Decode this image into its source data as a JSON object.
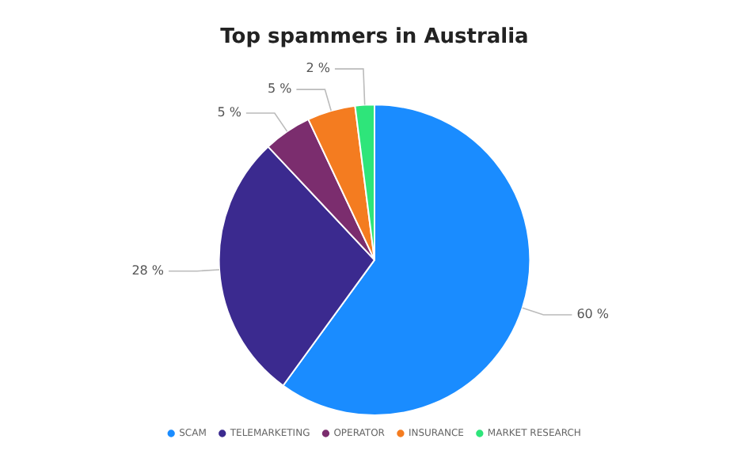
{
  "chart_data": {
    "type": "pie",
    "title": "Top spammers in Australia",
    "categories": [
      "SCAM",
      "TELEMARKETING",
      "OPERATOR",
      "INSURANCE",
      "MARKET RESEARCH"
    ],
    "values": [
      60,
      28,
      5,
      5,
      2
    ],
    "colors": [
      "#1a8cff",
      "#3b2a8f",
      "#7b2d6e",
      "#f47c20",
      "#2ee57a"
    ],
    "value_labels": [
      "60 %",
      "28 %",
      "5 %",
      "5 %",
      "2 %"
    ],
    "legend": "bottom"
  }
}
